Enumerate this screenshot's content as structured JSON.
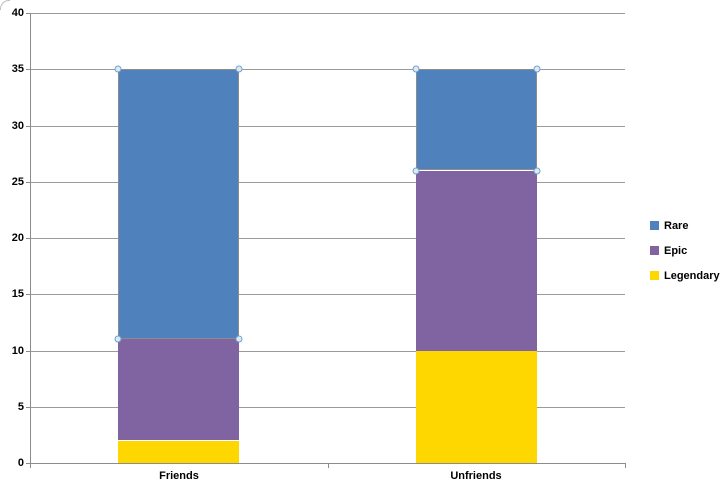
{
  "chart_data": {
    "type": "bar",
    "stacked": true,
    "title": "",
    "xlabel": "",
    "ylabel": "",
    "categories": [
      "Friends",
      "Unfriends"
    ],
    "series": [
      {
        "name": "Rare",
        "color": "#4F81BD",
        "values": [
          24,
          9
        ]
      },
      {
        "name": "Epic",
        "color": "#8064A2",
        "values": [
          9,
          16
        ]
      },
      {
        "name": "Legendary",
        "color": "#FFD700",
        "values": [
          2,
          10
        ]
      }
    ],
    "stack_totals": [
      35,
      35
    ],
    "segment_boundaries": {
      "Friends": [
        2,
        11,
        35
      ],
      "Unfriends": [
        10,
        26,
        35
      ]
    },
    "ylim": [
      0,
      40
    ],
    "y_step": 5,
    "y_tick_labels": [
      "0",
      "5",
      "10",
      "15",
      "20",
      "25",
      "30",
      "35",
      "40"
    ],
    "grid": true,
    "legend_position": "right",
    "selected_series": "Rare"
  },
  "style": {
    "background": "#FFFFFF",
    "grid_color": "#9B9B9B",
    "axis_color": "#8C8C8C",
    "text_color": "#000000",
    "selection_outline": "#8C8C8C",
    "handle_fill": "#DCE9F6",
    "handle_border": "#73A2C9"
  }
}
